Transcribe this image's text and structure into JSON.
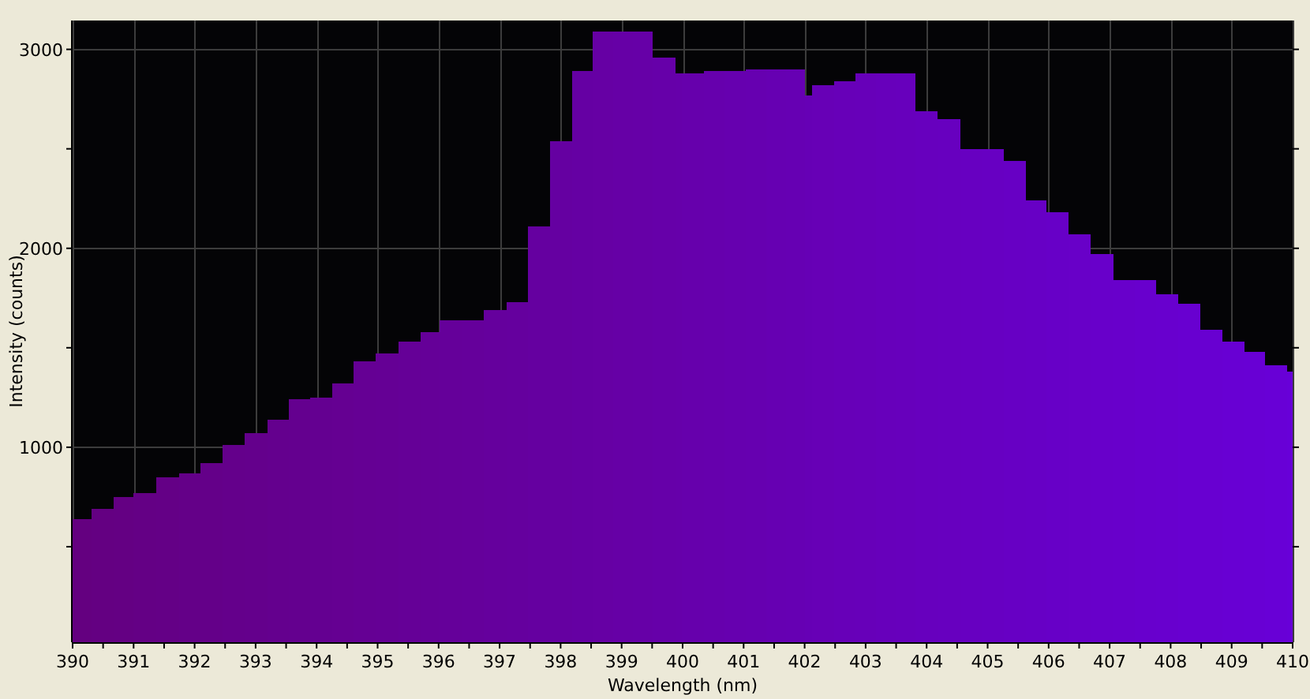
{
  "chart_data": {
    "type": "histogram",
    "xlabel": "Wavelength (nm)",
    "ylabel": "Intensity (counts)",
    "bins": [
      390,
      390.31,
      390.67,
      391,
      391.37,
      391.74,
      392.1,
      392.46,
      392.82,
      393.19,
      393.55,
      393.89,
      394.25,
      394.61,
      394.97,
      395.34,
      395.7,
      396.02,
      396.38,
      396.74,
      397.11,
      397.47,
      397.83,
      398.19,
      398.53,
      398.86,
      399.19,
      399.51,
      399.88,
      399.99,
      400.35,
      400.69,
      401.04,
      401.37,
      401.69,
      402.01,
      402.12,
      402.49,
      402.83,
      403.17,
      403.5,
      403.82,
      404.18,
      404.55,
      404.91,
      405.27,
      405.63,
      405.97,
      406.33,
      406.69,
      407.06,
      407.41,
      407.76,
      408.12,
      408.48,
      408.85,
      409.21,
      409.55,
      409.91,
      410
    ],
    "values": [
      640,
      690,
      750,
      770,
      850,
      870,
      920,
      1010,
      1070,
      1140,
      1240,
      1250,
      1320,
      1430,
      1470,
      1530,
      1580,
      1640,
      1640,
      1690,
      1730,
      2110,
      2540,
      2890,
      3090,
      3090,
      3090,
      2960,
      2880,
      2880,
      2890,
      2890,
      2900,
      2900,
      2900,
      2770,
      2820,
      2840,
      2880,
      2880,
      2880,
      2690,
      2650,
      2500,
      2500,
      2440,
      2240,
      2180,
      2070,
      1970,
      1840,
      1840,
      1770,
      1720,
      1590,
      1530,
      1480,
      1410,
      1380
    ],
    "colors": [
      "#640080",
      "#640082",
      "#640083",
      "#640085",
      "#640086",
      "#640088",
      "#640089",
      "#64008b",
      "#64008c",
      "#64008e",
      "#64008f",
      "#640091",
      "#650092",
      "#650094",
      "#650095",
      "#650097",
      "#650098",
      "#65009a",
      "#65009b",
      "#65009d",
      "#65009e",
      "#6500a0",
      "#6500a1",
      "#6500a3",
      "#6600a4",
      "#6600a6",
      "#6600a7",
      "#6600a9",
      "#6600aa",
      "#6600ac",
      "#6600ad",
      "#6600af",
      "#6600b0",
      "#6600b2",
      "#6600b3",
      "#6600b5",
      "#6700b6",
      "#6700b8",
      "#6700b9",
      "#6700bb",
      "#6700bc",
      "#6700be",
      "#6700bf",
      "#6700c1",
      "#6700c2",
      "#6700c4",
      "#6700c5",
      "#6700c7",
      "#6800c8",
      "#6800ca",
      "#6800cb",
      "#6800cd",
      "#6800ce",
      "#6800d0",
      "#6800d1",
      "#6800d3",
      "#6800d4",
      "#6800d6",
      "#6800d8"
    ],
    "xlim": [
      390,
      410
    ],
    "xticks": [
      390,
      {
        "value": 390.5,
        "label": null
      },
      391,
      {
        "value": 391.5,
        "label": null
      },
      392,
      {
        "value": 392.5,
        "label": null
      },
      393,
      {
        "value": 393.5,
        "label": null
      },
      394,
      {
        "value": 394.5,
        "label": null
      },
      395,
      {
        "value": 395.5,
        "label": null
      },
      396,
      {
        "value": 396.5,
        "label": null
      },
      397,
      {
        "value": 397.5,
        "label": null
      },
      398,
      {
        "value": 398.5,
        "label": null
      },
      399,
      {
        "value": 399.5,
        "label": null
      },
      400,
      {
        "value": 400.5,
        "label": null
      },
      401,
      {
        "value": 401.5,
        "label": null
      },
      402,
      {
        "value": 402.5,
        "label": null
      },
      403,
      {
        "value": 403.5,
        "label": null
      },
      404,
      {
        "value": 404.5,
        "label": null
      },
      405,
      {
        "value": 405.5,
        "label": null
      },
      406,
      {
        "value": 406.5,
        "label": null
      },
      407,
      {
        "value": 407.5,
        "label": null
      },
      408,
      {
        "value": 408.5,
        "label": null
      },
      409,
      {
        "value": 409.5,
        "label": null
      },
      410
    ],
    "ylim": [
      20,
      3145
    ],
    "yticks": [
      {
        "value": 500,
        "label": null
      },
      1000,
      {
        "value": 1500,
        "label": null
      },
      2000,
      {
        "value": 2500,
        "label": null
      },
      3000
    ],
    "grid": true
  }
}
